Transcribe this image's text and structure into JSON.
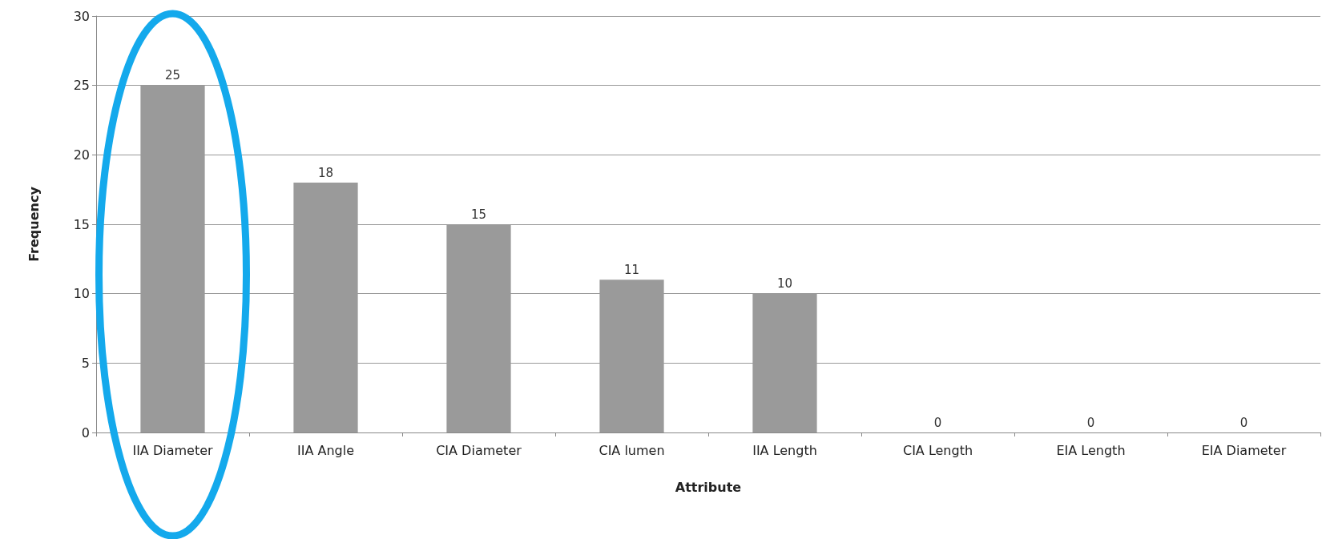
{
  "chart_data": {
    "type": "bar",
    "xlabel": "Attribute",
    "ylabel": "Frequency",
    "categories": [
      "IIA Diameter",
      "IIA Angle",
      "CIA Diameter",
      "CIA lumen",
      "IIA Length",
      "CIA Length",
      "EIA Length",
      "EIA Diameter"
    ],
    "values": [
      25,
      18,
      15,
      11,
      10,
      0,
      0,
      0
    ],
    "color": "#9a9a9a",
    "ylim": [
      0,
      30
    ],
    "yticks": [
      0,
      5,
      10,
      15,
      20,
      25,
      30
    ],
    "grid": "y",
    "data_labels": true
  }
}
